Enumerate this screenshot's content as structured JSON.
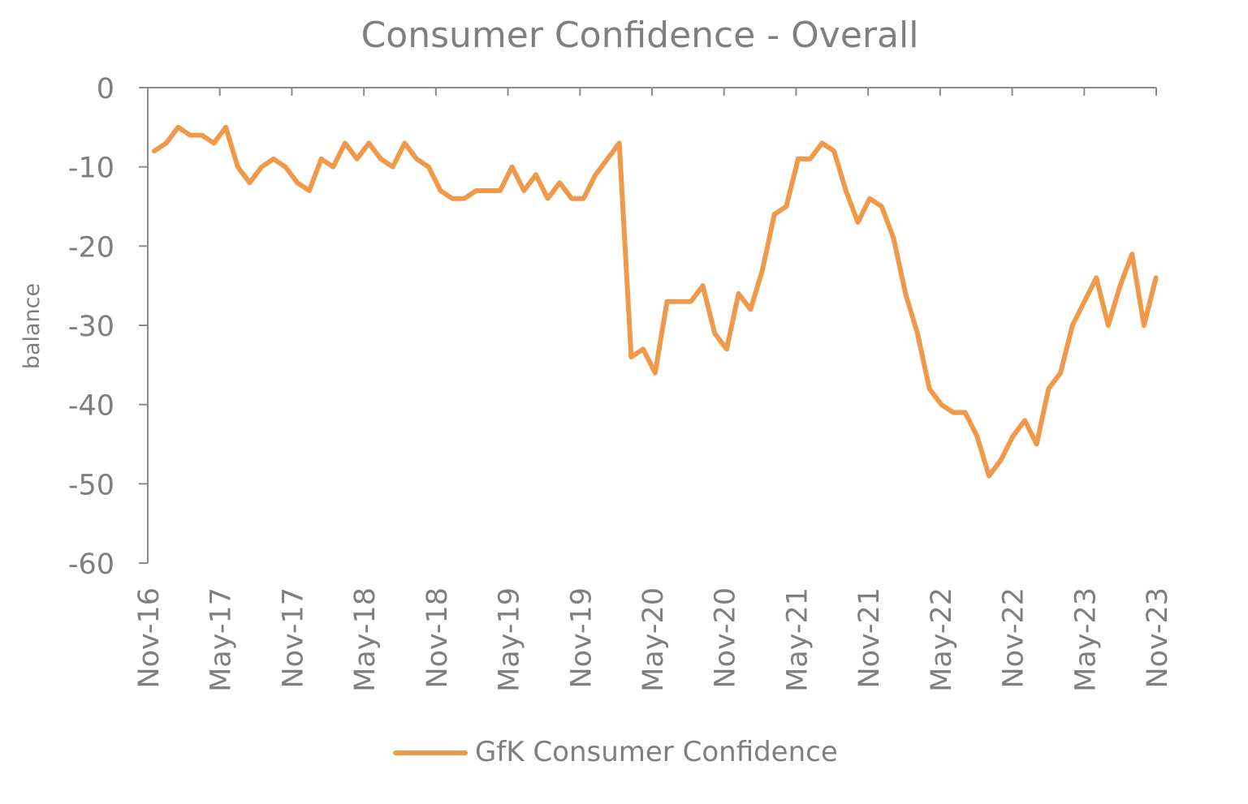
{
  "chart_data": {
    "type": "line",
    "title": "Consumer Confidence - Overall",
    "xlabel": "",
    "ylabel": "balance",
    "ylim": [
      -60,
      0
    ],
    "yticks": [
      0,
      -10,
      -20,
      -30,
      -40,
      -50,
      -60
    ],
    "xtick_labels": [
      "Nov-16",
      "May-17",
      "Nov-17",
      "May-18",
      "Nov-18",
      "May-19",
      "Nov-19",
      "May-20",
      "Nov-20",
      "May-21",
      "Nov-21",
      "May-22",
      "Nov-22",
      "May-23",
      "Nov-23"
    ],
    "x_start": "Nov-16",
    "x_end": "Nov-23",
    "grid": false,
    "legend": "bottom",
    "series": [
      {
        "name": "GfK Consumer Confidence",
        "color": "#f0994a",
        "values": [
          -8,
          -7,
          -5,
          -6,
          -6,
          -7,
          -5,
          -10,
          -12,
          -10,
          -9,
          -10,
          -12,
          -13,
          -9,
          -10,
          -7,
          -9,
          -7,
          -9,
          -10,
          -7,
          -9,
          -10,
          -13,
          -14,
          -14,
          -13,
          -13,
          -13,
          -10,
          -13,
          -11,
          -14,
          -12,
          -14,
          -14,
          -11,
          -9,
          -7,
          -34,
          -33,
          -36,
          -27,
          -27,
          -27,
          -25,
          -31,
          -33,
          -26,
          -28,
          -23,
          -16,
          -15,
          -9,
          -9,
          -7,
          -8,
          -13,
          -17,
          -14,
          -15,
          -19,
          -26,
          -31,
          -38,
          -40,
          -41,
          -41,
          -44,
          -49,
          -47,
          -44,
          -42,
          -45,
          -38,
          -36,
          -30,
          -27,
          -24,
          -30,
          -25,
          -21,
          -30,
          -24
        ]
      }
    ]
  }
}
